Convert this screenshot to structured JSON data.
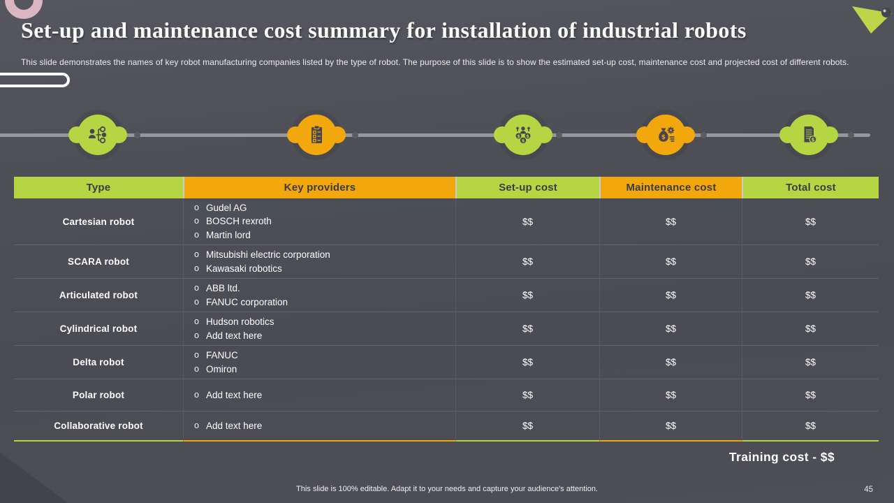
{
  "colors": {
    "background": "#4d4e56",
    "green": "#b6d542",
    "orange": "#f2a70d",
    "pink": "#dcb5c4",
    "dark": "#45464e",
    "white": "#ffffff"
  },
  "slide": {
    "title": "Set-up and maintenance cost summary for installation of industrial robots",
    "subtitle": "This slide demonstrates the names of key robot manufacturing companies listed by the type of robot. The purpose of this slide is to show the estimated set-up cost, maintenance cost and projected cost of different robots.",
    "footer": "This slide is 100% editable. Adapt it to your needs and capture your audience's attention.",
    "page_number": "45",
    "training_note": "Training cost - $$"
  },
  "timeline": {
    "icons": [
      {
        "name": "org-hierarchy-icon",
        "glyph": "hierarchy",
        "color": "#b6d542"
      },
      {
        "name": "checklist-icon",
        "glyph": "checklist",
        "color": "#f2a70d"
      },
      {
        "name": "team-cost-icon",
        "glyph": "team",
        "color": "#b6d542"
      },
      {
        "name": "money-gear-icon",
        "glyph": "moneybag",
        "color": "#f2a70d"
      },
      {
        "name": "invoice-icon",
        "glyph": "invoice",
        "color": "#b6d542"
      }
    ]
  },
  "table": {
    "bullet": "o",
    "columns": [
      {
        "label": "Type",
        "color": "#b6d542"
      },
      {
        "label": "Key providers",
        "color": "#f2a70d"
      },
      {
        "label": "Set-up cost",
        "color": "#b6d542"
      },
      {
        "label": "Maintenance cost",
        "color": "#f2a70d"
      },
      {
        "label": "Total cost",
        "color": "#b6d542"
      }
    ],
    "rows": [
      {
        "type": "Cartesian robot",
        "providers": [
          "Gudel AG",
          "BOSCH rexroth",
          "Martin lord"
        ],
        "setup_cost": "$$",
        "maintenance_cost": "$$",
        "total_cost": "$$"
      },
      {
        "type": "SCARA robot",
        "providers": [
          "Mitsubishi electric corporation",
          "Kawasaki robotics"
        ],
        "setup_cost": "$$",
        "maintenance_cost": "$$",
        "total_cost": "$$"
      },
      {
        "type": "Articulated robot",
        "providers": [
          "ABB ltd.",
          "FANUC corporation"
        ],
        "setup_cost": "$$",
        "maintenance_cost": "$$",
        "total_cost": "$$"
      },
      {
        "type": "Cylindrical robot",
        "providers": [
          "Hudson robotics",
          "Add text here"
        ],
        "setup_cost": "$$",
        "maintenance_cost": "$$",
        "total_cost": "$$"
      },
      {
        "type": "Delta robot",
        "providers": [
          "FANUC",
          "Omiron"
        ],
        "setup_cost": "$$",
        "maintenance_cost": "$$",
        "total_cost": "$$"
      },
      {
        "type": "Polar robot",
        "providers": [
          "Add text here"
        ],
        "setup_cost": "$$",
        "maintenance_cost": "$$",
        "total_cost": "$$"
      },
      {
        "type": "Collaborative robot",
        "providers": [
          "Add text here"
        ],
        "setup_cost": "$$",
        "maintenance_cost": "$$",
        "total_cost": "$$"
      }
    ]
  }
}
